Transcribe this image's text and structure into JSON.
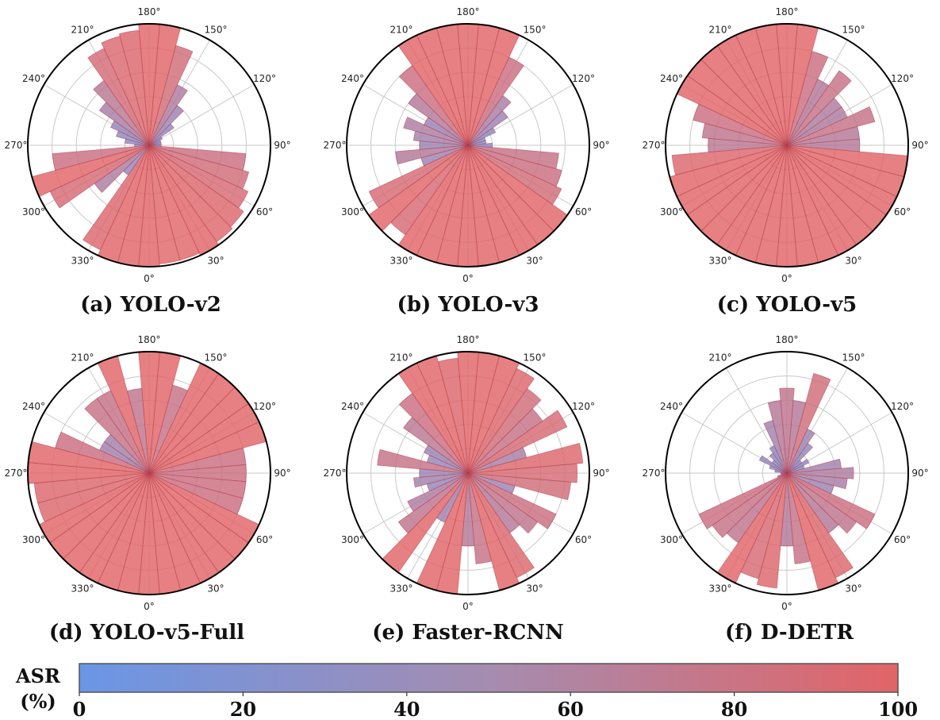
{
  "colors": {
    "low": "#6a96e6",
    "high": "#e26466",
    "grid": "#c8c8c8",
    "outline": "#000000"
  },
  "chart_data": [
    {
      "type": "bar",
      "polar": true,
      "label": "(a) YOLO-v2",
      "unit": "ASR (%)",
      "rlim": [
        0,
        100
      ],
      "theta_ticks": [
        "0°",
        "30°",
        "60°",
        "90°",
        "120°",
        "150°",
        "180°",
        "210°",
        "240°",
        "270°",
        "300°",
        "330°"
      ],
      "angles": [
        0,
        10,
        20,
        30,
        40,
        50,
        60,
        70,
        80,
        90,
        100,
        110,
        120,
        130,
        140,
        150,
        160,
        170,
        180,
        190,
        200,
        210,
        220,
        230,
        240,
        250,
        260,
        270,
        280,
        290,
        300,
        310,
        320,
        330,
        340,
        350
      ],
      "values": [
        100,
        98,
        98,
        100,
        97,
        95,
        90,
        85,
        80,
        10,
        10,
        10,
        12,
        25,
        40,
        55,
        85,
        100,
        100,
        95,
        93,
        88,
        65,
        50,
        35,
        28,
        20,
        12,
        80,
        100,
        90,
        55,
        30,
        95,
        100,
        100
      ]
    },
    {
      "type": "bar",
      "polar": true,
      "label": "(b) YOLO-v3",
      "unit": "ASR (%)",
      "rlim": [
        0,
        100
      ],
      "theta_ticks": [
        "0°",
        "30°",
        "60°",
        "90°",
        "120°",
        "150°",
        "180°",
        "210°",
        "240°",
        "270°",
        "300°",
        "330°"
      ],
      "angles": [
        0,
        10,
        20,
        30,
        40,
        50,
        60,
        70,
        80,
        90,
        100,
        110,
        120,
        130,
        140,
        150,
        160,
        170,
        180,
        190,
        200,
        210,
        220,
        230,
        240,
        250,
        260,
        270,
        280,
        290,
        300,
        310,
        320,
        330,
        340,
        350
      ],
      "values": [
        100,
        100,
        100,
        100,
        100,
        100,
        85,
        80,
        75,
        20,
        15,
        15,
        25,
        40,
        50,
        80,
        100,
        100,
        100,
        100,
        100,
        100,
        80,
        60,
        40,
        55,
        45,
        40,
        60,
        40,
        90,
        100,
        90,
        100,
        100,
        100
      ]
    },
    {
      "type": "bar",
      "polar": true,
      "label": "(c) YOLO-v5",
      "unit": "ASR (%)",
      "rlim": [
        0,
        100
      ],
      "theta_ticks": [
        "0°",
        "30°",
        "60°",
        "90°",
        "120°",
        "150°",
        "180°",
        "210°",
        "240°",
        "270°",
        "300°",
        "330°"
      ],
      "angles": [
        0,
        10,
        20,
        30,
        40,
        50,
        60,
        70,
        80,
        90,
        100,
        110,
        120,
        130,
        140,
        150,
        160,
        170,
        180,
        190,
        200,
        210,
        220,
        230,
        240,
        250,
        260,
        270,
        280,
        290,
        300,
        310,
        320,
        330,
        340,
        350
      ],
      "values": [
        100,
        100,
        100,
        100,
        100,
        100,
        100,
        100,
        100,
        60,
        60,
        75,
        55,
        55,
        75,
        60,
        80,
        100,
        100,
        100,
        100,
        100,
        100,
        100,
        100,
        80,
        70,
        65,
        95,
        100,
        100,
        100,
        100,
        100,
        100,
        100
      ]
    },
    {
      "type": "bar",
      "polar": true,
      "label": "(d) YOLO-v5-Full",
      "unit": "ASR (%)",
      "rlim": [
        0,
        100
      ],
      "theta_ticks": [
        "0°",
        "30°",
        "60°",
        "90°",
        "120°",
        "150°",
        "180°",
        "210°",
        "240°",
        "270°",
        "300°",
        "330°"
      ],
      "angles": [
        0,
        10,
        20,
        30,
        40,
        50,
        60,
        70,
        80,
        90,
        100,
        110,
        120,
        130,
        140,
        150,
        160,
        170,
        180,
        190,
        200,
        210,
        220,
        230,
        240,
        250,
        260,
        270,
        280,
        290,
        300,
        310,
        320,
        330,
        340,
        350
      ],
      "values": [
        100,
        100,
        100,
        100,
        100,
        100,
        100,
        80,
        80,
        80,
        80,
        100,
        100,
        100,
        100,
        100,
        75,
        100,
        100,
        70,
        100,
        75,
        75,
        45,
        45,
        80,
        100,
        100,
        95,
        95,
        100,
        100,
        100,
        100,
        100,
        100
      ]
    },
    {
      "type": "bar",
      "polar": true,
      "label": "(e) Faster-RCNN",
      "unit": "ASR (%)",
      "rlim": [
        0,
        100
      ],
      "theta_ticks": [
        "0°",
        "30°",
        "60°",
        "90°",
        "120°",
        "150°",
        "180°",
        "210°",
        "240°",
        "270°",
        "300°",
        "330°"
      ],
      "angles": [
        0,
        10,
        20,
        30,
        40,
        50,
        60,
        70,
        80,
        90,
        100,
        110,
        120,
        130,
        140,
        150,
        160,
        170,
        180,
        190,
        200,
        210,
        220,
        230,
        240,
        250,
        260,
        270,
        280,
        290,
        300,
        310,
        320,
        330,
        340,
        350
      ],
      "values": [
        60,
        75,
        100,
        95,
        60,
        70,
        80,
        40,
        85,
        90,
        95,
        50,
        90,
        75,
        85,
        95,
        100,
        100,
        100,
        95,
        100,
        100,
        80,
        65,
        40,
        35,
        75,
        40,
        45,
        35,
        55,
        70,
        100,
        45,
        100,
        100
      ]
    },
    {
      "type": "bar",
      "polar": true,
      "label": "(f) D-DETR",
      "unit": "ASR (%)",
      "rlim": [
        0,
        100
      ],
      "theta_ticks": [
        "0°",
        "30°",
        "60°",
        "90°",
        "120°",
        "150°",
        "180°",
        "210°",
        "240°",
        "270°",
        "300°",
        "330°"
      ],
      "angles": [
        0,
        10,
        20,
        30,
        40,
        50,
        60,
        70,
        80,
        90,
        100,
        110,
        120,
        130,
        140,
        150,
        160,
        170,
        180,
        190,
        200,
        210,
        220,
        230,
        240,
        250,
        260,
        270,
        280,
        290,
        300,
        310,
        320,
        330,
        340,
        350
      ],
      "values": [
        60,
        75,
        100,
        95,
        60,
        70,
        80,
        40,
        50,
        55,
        45,
        15,
        20,
        15,
        30,
        40,
        85,
        60,
        70,
        60,
        45,
        25,
        20,
        15,
        25,
        15,
        10,
        5,
        5,
        8,
        80,
        75,
        70,
        100,
        90,
        95
      ]
    }
  ],
  "colorbar": {
    "title_line1": "ASR",
    "title_line2": "(%)",
    "ticks": [
      "0",
      "20",
      "40",
      "60",
      "80",
      "100"
    ],
    "range": [
      0,
      100
    ]
  }
}
